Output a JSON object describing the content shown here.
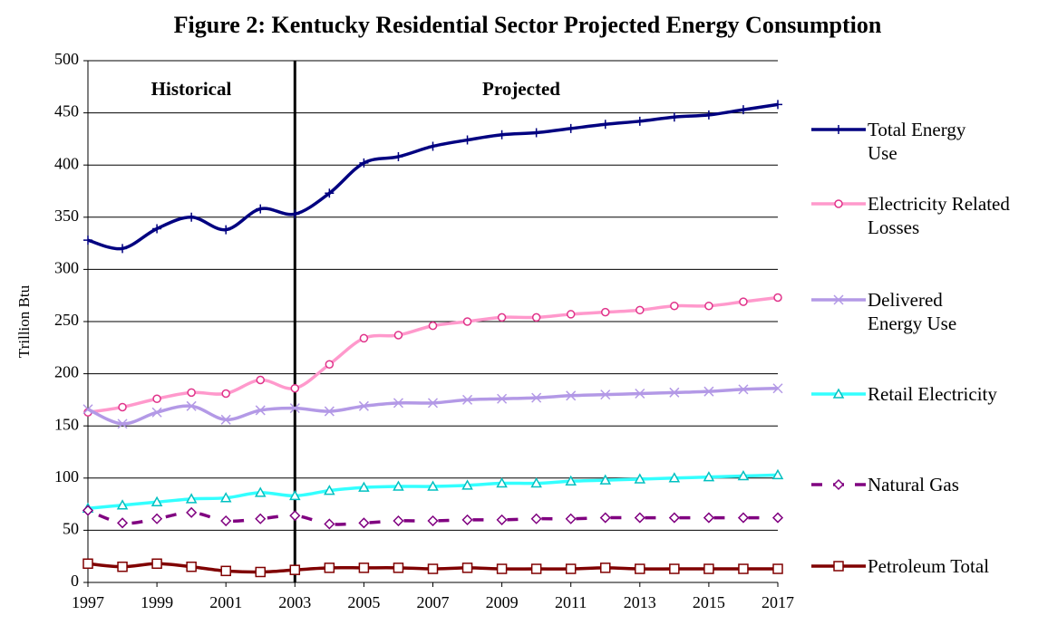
{
  "chart_data": {
    "type": "line",
    "title": "Figure 2:  Kentucky Residential Sector Projected Energy Consumption",
    "y_label": "Trillion Btu",
    "annotations": [
      "Historical",
      "Projected"
    ],
    "divider_x": 2003,
    "x": [
      1997,
      1998,
      1999,
      2000,
      2001,
      2002,
      2003,
      2004,
      2005,
      2006,
      2007,
      2008,
      2009,
      2010,
      2011,
      2012,
      2013,
      2014,
      2015,
      2016,
      2017
    ],
    "xlim": [
      1997,
      2017
    ],
    "xticks": [
      1997,
      1999,
      2001,
      2003,
      2005,
      2007,
      2009,
      2011,
      2013,
      2015,
      2017
    ],
    "ylim": [
      0,
      500
    ],
    "yticks": [
      0,
      50,
      100,
      150,
      200,
      250,
      300,
      350,
      400,
      450,
      500
    ],
    "grid": true,
    "legend": "right",
    "series": [
      {
        "name": "Total Energy Use",
        "color": "#000080",
        "marker": "plus",
        "values": [
          328,
          320,
          339,
          350,
          338,
          358,
          353,
          373,
          402,
          408,
          418,
          424,
          429,
          431,
          435,
          439,
          442,
          446,
          448,
          453,
          458
        ]
      },
      {
        "name": "Electricity Related Losses",
        "color": "#ff99cc",
        "marker": "circle",
        "values": [
          163,
          168,
          176,
          182,
          181,
          194,
          186,
          209,
          234,
          237,
          246,
          250,
          254,
          254,
          257,
          259,
          261,
          265,
          265,
          269,
          273
        ]
      },
      {
        "name": "Delivered Energy Use",
        "color": "#b399e6",
        "marker": "x",
        "values": [
          166,
          152,
          163,
          169,
          156,
          165,
          167,
          164,
          169,
          172,
          172,
          175,
          176,
          177,
          179,
          180,
          181,
          182,
          183,
          185,
          186
        ]
      },
      {
        "name": "Retail Electricity",
        "color": "#33ffff",
        "marker": "triangle",
        "values": [
          71,
          74,
          77,
          80,
          81,
          86,
          83,
          88,
          91,
          92,
          92,
          93,
          95,
          95,
          97,
          98,
          99,
          100,
          101,
          102,
          103
        ]
      },
      {
        "name": "Natural Gas",
        "color": "#800080",
        "marker": "diamond",
        "dashed": true,
        "values": [
          69,
          57,
          61,
          67,
          59,
          61,
          64,
          56,
          57,
          59,
          59,
          60,
          60,
          61,
          61,
          62,
          62,
          62,
          62,
          62,
          62
        ]
      },
      {
        "name": "Petroleum Total",
        "color": "#800000",
        "marker": "square",
        "values": [
          18,
          15,
          18,
          15,
          11,
          10,
          12,
          14,
          14,
          14,
          13,
          14,
          13,
          13,
          13,
          14,
          13,
          13,
          13,
          13,
          13
        ]
      }
    ]
  }
}
